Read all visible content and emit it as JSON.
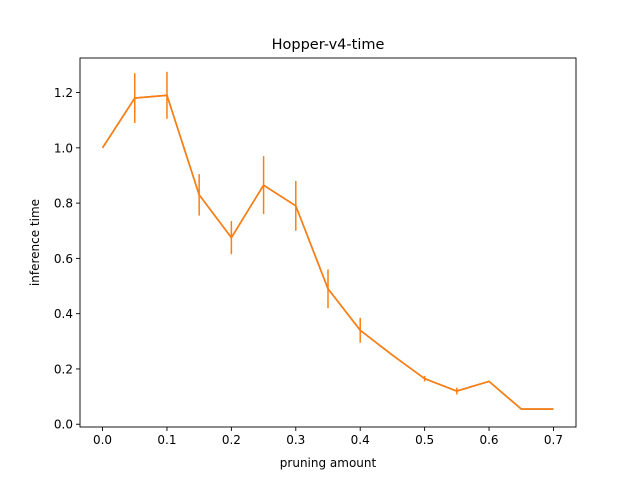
{
  "chart_data": {
    "type": "line",
    "title": "Hopper-v4-time",
    "xlabel": "pruning amount",
    "ylabel": "inference time",
    "xlim": [
      -0.035,
      0.735
    ],
    "ylim": [
      -0.01,
      1.325
    ],
    "xticks": [
      0.0,
      0.1,
      0.2,
      0.3,
      0.4,
      0.5,
      0.6,
      0.7
    ],
    "xtick_labels": [
      "0.0",
      "0.1",
      "0.2",
      "0.3",
      "0.4",
      "0.5",
      "0.6",
      "0.7"
    ],
    "yticks": [
      0.0,
      0.2,
      0.4,
      0.6,
      0.8,
      1.0,
      1.2
    ],
    "ytick_labels": [
      "0.0",
      "0.2",
      "0.4",
      "0.6",
      "0.8",
      "1.0",
      "1.2"
    ],
    "grid": false,
    "series": [
      {
        "color": "#808080",
        "x": [
          0.0,
          0.05,
          0.1,
          0.15,
          0.2,
          0.25,
          0.3,
          0.35,
          0.4,
          0.45,
          0.5,
          0.55,
          0.6,
          0.65,
          0.7
        ],
        "values": [
          1.0,
          1.18,
          1.19,
          0.83,
          0.675,
          0.865,
          0.79,
          0.49,
          0.34,
          0.25,
          0.165,
          0.12,
          0.155,
          0.055,
          0.055
        ]
      },
      {
        "color": "#ff7f0e",
        "x": [
          0.0,
          0.05,
          0.1,
          0.15,
          0.2,
          0.25,
          0.3,
          0.35,
          0.4,
          0.45,
          0.5,
          0.55,
          0.6,
          0.65,
          0.7
        ],
        "values": [
          1.0,
          1.18,
          1.19,
          0.83,
          0.675,
          0.865,
          0.79,
          0.49,
          0.34,
          0.25,
          0.165,
          0.12,
          0.155,
          0.055,
          0.055
        ],
        "error": [
          0.0,
          0.09,
          0.085,
          0.075,
          0.06,
          0.105,
          0.09,
          0.07,
          0.045,
          0.0,
          0.01,
          0.012,
          0.0,
          0.0,
          0.0
        ]
      }
    ]
  }
}
